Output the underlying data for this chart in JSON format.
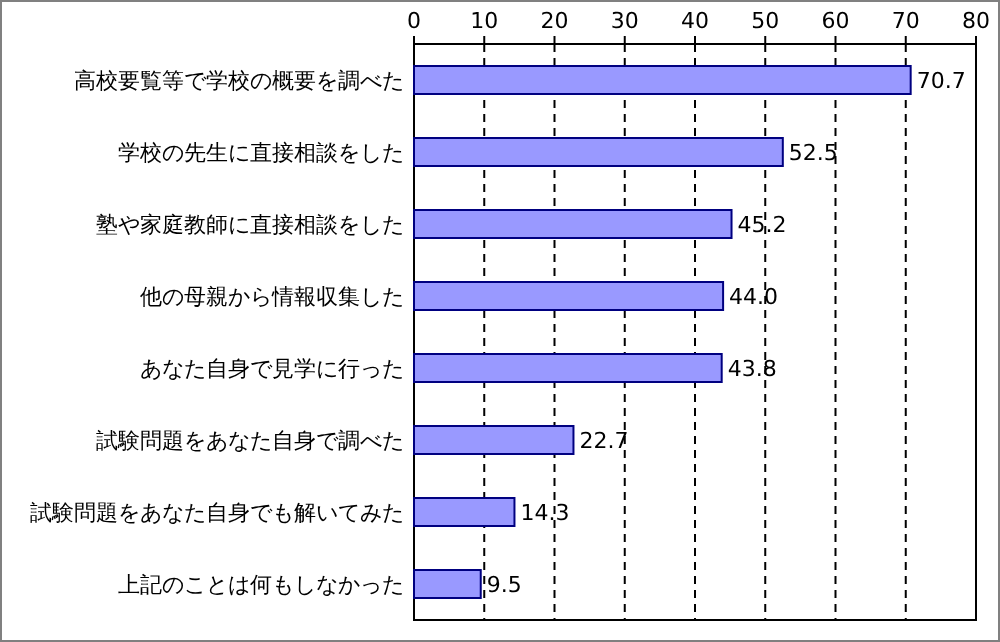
{
  "chart_data": {
    "type": "bar",
    "orientation": "horizontal",
    "categories": [
      "高校要覧等で学校の概要を調べた",
      "学校の先生に直接相談をした",
      "塾や家庭教師に直接相談をした",
      "他の母親から情報収集した",
      "あなた自身で見学に行った",
      "試験問題をあなた自身で調べた",
      "試験問題をあなた自身でも解いてみた",
      "上記のことは何もしなかった"
    ],
    "values": [
      70.7,
      52.5,
      45.2,
      44.0,
      43.8,
      22.7,
      14.3,
      9.5
    ],
    "value_labels": [
      "70.7",
      "52.5",
      "45.2",
      "44.0",
      "43.8",
      "22.7",
      "14.3",
      "9.5"
    ],
    "color": "#9999ff",
    "xlim": [
      0,
      80
    ],
    "xticks": [
      0,
      10,
      20,
      30,
      40,
      50,
      60,
      70,
      80
    ],
    "grid": "x"
  }
}
